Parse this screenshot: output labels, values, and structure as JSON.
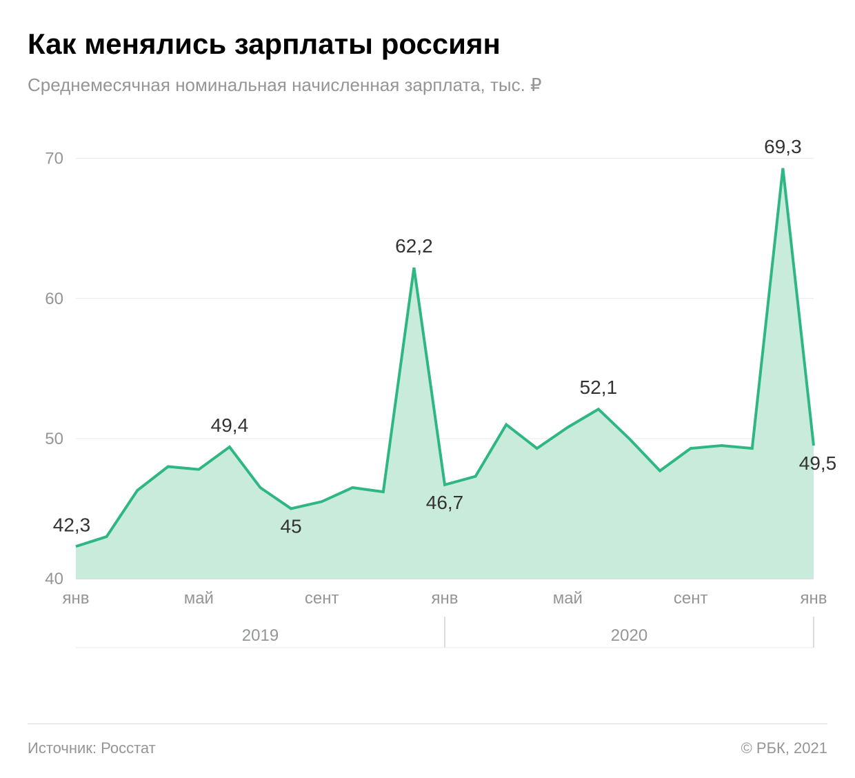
{
  "title": "Как менялись зарплаты россиян",
  "subtitle": "Среднемесячная номинальная начисленная зарплата, тыс. ₽",
  "source_label": "Источник: Росстат",
  "copyright": "© РБК, 2021",
  "chart": {
    "type": "area",
    "background_color": "#ffffff",
    "grid_color": "#e8e9e9",
    "baseline_color": "#cfd1d2",
    "line_color": "#2fb783",
    "fill_color": "#c9ebdb",
    "line_width": 4,
    "ylim": [
      40,
      72
    ],
    "yticks": [
      40,
      50,
      60,
      70
    ],
    "values": [
      42.3,
      43.0,
      46.3,
      48.0,
      47.8,
      49.4,
      46.5,
      45.0,
      45.5,
      46.5,
      46.2,
      62.2,
      46.7,
      47.3,
      51.0,
      49.3,
      50.8,
      52.1,
      50.0,
      47.7,
      49.3,
      49.5,
      49.3,
      69.3,
      49.5
    ],
    "x_labels": [
      {
        "index": 0,
        "text": "янв"
      },
      {
        "index": 4,
        "text": "май"
      },
      {
        "index": 8,
        "text": "сент"
      },
      {
        "index": 12,
        "text": "янв"
      },
      {
        "index": 16,
        "text": "май"
      },
      {
        "index": 20,
        "text": "сент"
      },
      {
        "index": 24,
        "text": "янв"
      }
    ],
    "year_labels": [
      {
        "center_index": 6,
        "end_index": 12,
        "text": "2019"
      },
      {
        "center_index": 18,
        "end_index": 24,
        "text": "2020"
      }
    ],
    "data_labels": [
      {
        "index": 0,
        "text": "42,3",
        "dy": -22,
        "anchor": "start"
      },
      {
        "index": 5,
        "text": "49,4",
        "dy": -22,
        "anchor": "middle"
      },
      {
        "index": 7,
        "text": "45",
        "dy": 35,
        "anchor": "middle"
      },
      {
        "index": 11,
        "text": "62,2",
        "dy": -22,
        "anchor": "middle"
      },
      {
        "index": 12,
        "text": "46,7",
        "dy": 35,
        "anchor": "middle"
      },
      {
        "index": 17,
        "text": "52,1",
        "dy": -22,
        "anchor": "middle"
      },
      {
        "index": 23,
        "text": "69,3",
        "dy": -22,
        "anchor": "middle"
      },
      {
        "index": 24,
        "text": "49,5",
        "dy": 35,
        "anchor": "end"
      }
    ],
    "axis_fontsize": 24,
    "label_fontsize": 28,
    "label_color": "#333333",
    "tick_color": "#939597"
  }
}
